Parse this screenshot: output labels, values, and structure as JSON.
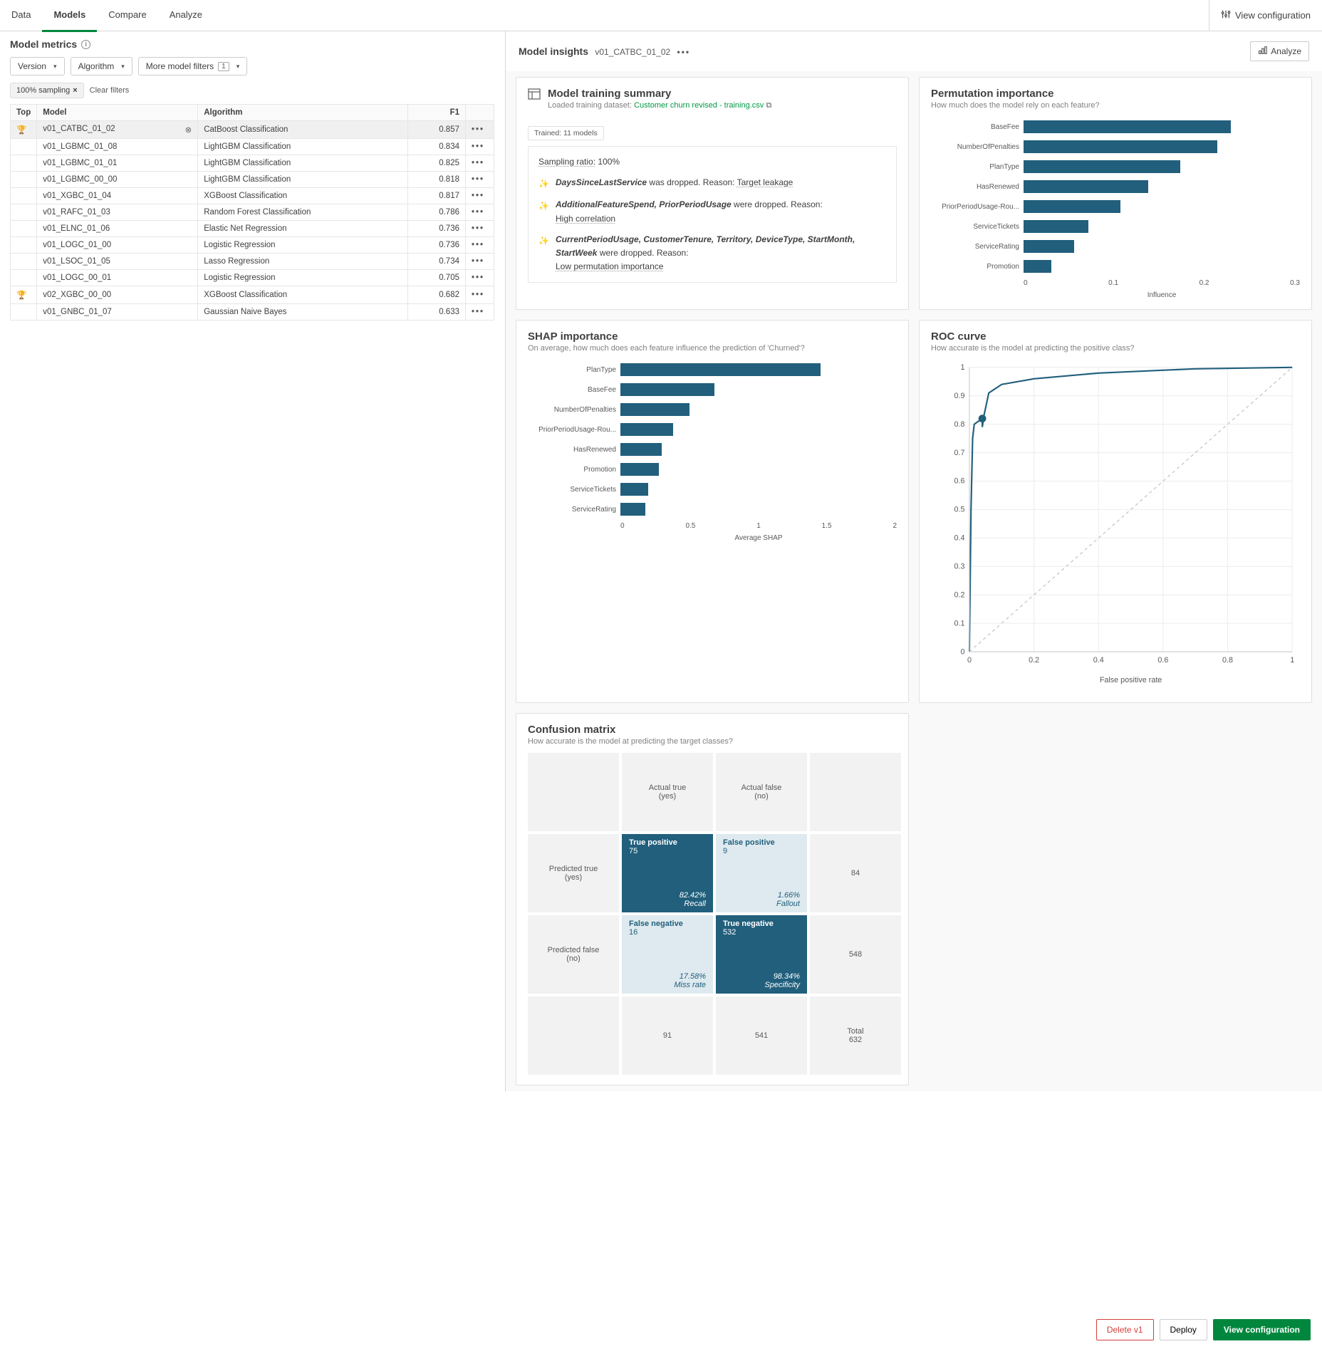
{
  "tabs": {
    "data": "Data",
    "models": "Models",
    "compare": "Compare",
    "analyze": "Analyze"
  },
  "top": {
    "viewconfig": "View configuration"
  },
  "left": {
    "title": "Model metrics",
    "filters": {
      "version": "Version",
      "algorithm": "Algorithm",
      "more": "More model filters",
      "more_count": "1"
    },
    "chip": "100% sampling",
    "clear": "Clear filters",
    "th": {
      "top": "Top",
      "model": "Model",
      "algo": "Algorithm",
      "f1": "F1"
    },
    "rows": [
      {
        "top": "🏆",
        "model": "v01_CATBC_01_02",
        "algo": "CatBoost Classification",
        "f1": "0.857",
        "sel": true
      },
      {
        "top": "",
        "model": "v01_LGBMC_01_08",
        "algo": "LightGBM Classification",
        "f1": "0.834"
      },
      {
        "top": "",
        "model": "v01_LGBMC_01_01",
        "algo": "LightGBM Classification",
        "f1": "0.825"
      },
      {
        "top": "",
        "model": "v01_LGBMC_00_00",
        "algo": "LightGBM Classification",
        "f1": "0.818"
      },
      {
        "top": "",
        "model": "v01_XGBC_01_04",
        "algo": "XGBoost Classification",
        "f1": "0.817"
      },
      {
        "top": "",
        "model": "v01_RAFC_01_03",
        "algo": "Random Forest Classification",
        "f1": "0.786"
      },
      {
        "top": "",
        "model": "v01_ELNC_01_06",
        "algo": "Elastic Net Regression",
        "f1": "0.736"
      },
      {
        "top": "",
        "model": "v01_LOGC_01_00",
        "algo": "Logistic Regression",
        "f1": "0.736"
      },
      {
        "top": "",
        "model": "v01_LSOC_01_05",
        "algo": "Lasso Regression",
        "f1": "0.734"
      },
      {
        "top": "",
        "model": "v01_LOGC_00_01",
        "algo": "Logistic Regression",
        "f1": "0.705"
      },
      {
        "top": "🏆",
        "model": "v02_XGBC_00_00",
        "algo": "XGBoost Classification",
        "f1": "0.682"
      },
      {
        "top": "",
        "model": "v01_GNBC_01_07",
        "algo": "Gaussian Naive Bayes",
        "f1": "0.633"
      }
    ]
  },
  "insights": {
    "title": "Model insights",
    "model": "v01_CATBC_01_02",
    "analyze": "Analyze"
  },
  "training": {
    "title": "Model training summary",
    "loaded_label": "Loaded training dataset:",
    "dataset": "Customer churn revised - training.csv",
    "tag": "Trained: 11 models",
    "ratio_label": "Sampling ratio:",
    "ratio": "100%",
    "r1a": "DaysSinceLastService",
    "r1b": " was dropped. Reason: ",
    "r1c": "Target leakage",
    "r2a": "AdditionalFeatureSpend, PriorPeriodUsage",
    "r2b": " were dropped. Reason:",
    "r2c": "High correlation",
    "r3a": "CurrentPeriodUsage, CustomerTenure, Territory, DeviceType, StartMonth, StartWeek",
    "r3b": " were dropped. Reason:",
    "r3c": "Low permutation importance"
  },
  "permutation": {
    "title": "Permutation importance",
    "sub": "How much does the model rely on each feature?",
    "axis": "Influence",
    "ticks": [
      "0",
      "0.1",
      "0.2",
      "0.3"
    ],
    "bars": [
      {
        "label": "BaseFee",
        "v": 0.225
      },
      {
        "label": "NumberOfPenalties",
        "v": 0.21
      },
      {
        "label": "PlanType",
        "v": 0.17
      },
      {
        "label": "HasRenewed",
        "v": 0.135
      },
      {
        "label": "PriorPeriodUsage-Rou...",
        "v": 0.105
      },
      {
        "label": "ServiceTickets",
        "v": 0.07
      },
      {
        "label": "ServiceRating",
        "v": 0.055
      },
      {
        "label": "Promotion",
        "v": 0.03
      }
    ],
    "max": 0.3
  },
  "shap": {
    "title": "SHAP importance",
    "sub": "On average, how much does each feature influence the prediction of 'Churned'?",
    "axis": "Average SHAP",
    "ticks": [
      "0",
      "0.5",
      "1",
      "1.5",
      "2"
    ],
    "bars": [
      {
        "label": "PlanType",
        "v": 1.45
      },
      {
        "label": "BaseFee",
        "v": 0.68
      },
      {
        "label": "NumberOfPenalties",
        "v": 0.5
      },
      {
        "label": "PriorPeriodUsage-Rou...",
        "v": 0.38
      },
      {
        "label": "HasRenewed",
        "v": 0.3
      },
      {
        "label": "Promotion",
        "v": 0.28
      },
      {
        "label": "ServiceTickets",
        "v": 0.2
      },
      {
        "label": "ServiceRating",
        "v": 0.18
      }
    ],
    "max": 2
  },
  "roc": {
    "title": "ROC curve",
    "sub": "How accurate is the model at predicting the positive class?",
    "xlabel": "False positive rate",
    "yticks": [
      "0",
      "0.1",
      "0.2",
      "0.3",
      "0.4",
      "0.5",
      "0.6",
      "0.7",
      "0.8",
      "0.9",
      "1"
    ],
    "xticks": [
      "0",
      "0.2",
      "0.4",
      "0.6",
      "0.8",
      "1"
    ],
    "curve": [
      [
        0,
        0
      ],
      [
        0.005,
        0.5
      ],
      [
        0.01,
        0.75
      ],
      [
        0.015,
        0.8
      ],
      [
        0.04,
        0.82
      ],
      [
        0.04,
        0.79
      ],
      [
        0.045,
        0.83
      ],
      [
        0.06,
        0.91
      ],
      [
        0.1,
        0.94
      ],
      [
        0.2,
        0.96
      ],
      [
        0.4,
        0.98
      ],
      [
        0.7,
        0.995
      ],
      [
        1,
        1
      ]
    ],
    "dot": [
      0.04,
      0.82
    ]
  },
  "confusion": {
    "title": "Confusion matrix",
    "sub": "How accurate is the model at predicting the target classes?",
    "actual_true": "Actual true\n(yes)",
    "actual_false": "Actual false\n(no)",
    "pred_true": "Predicted true\n(yes)",
    "pred_false": "Predicted false\n(no)",
    "tp": {
      "t": "True positive",
      "n": "75",
      "p": "82.42%",
      "pl": "Recall"
    },
    "fp": {
      "t": "False positive",
      "n": "9",
      "p": "1.66%",
      "pl": "Fallout"
    },
    "fn": {
      "t": "False negative",
      "n": "16",
      "p": "17.58%",
      "pl": "Miss rate"
    },
    "tn": {
      "t": "True negative",
      "n": "532",
      "p": "98.34%",
      "pl": "Specificity"
    },
    "row_true_sum": "84",
    "row_false_sum": "548",
    "col1_sum": "91",
    "col2_sum": "541",
    "total_lbl": "Total",
    "total": "632"
  },
  "footer": {
    "delete": "Delete v1",
    "deploy": "Deploy",
    "viewconfig": "View configuration"
  },
  "colors": {
    "bar": "#215f7c",
    "accent": "#009845",
    "danger": "#d43f3a"
  }
}
